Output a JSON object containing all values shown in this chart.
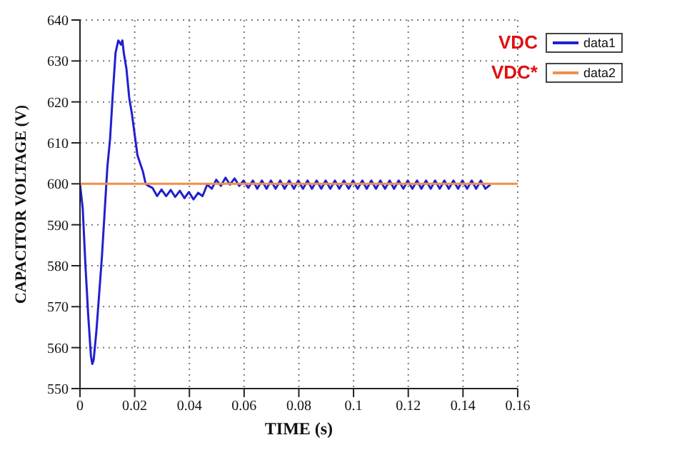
{
  "chart_data": {
    "type": "line",
    "xlabel": "TIME (s)",
    "ylabel": "CAPACITOR VOLTAGE (V)",
    "xlim": [
      0,
      0.16
    ],
    "xticks": [
      0,
      0.02,
      0.04,
      0.06,
      0.08,
      0.1,
      0.12,
      0.14,
      0.16
    ],
    "ylim": [
      550,
      640
    ],
    "yticks": [
      550,
      560,
      570,
      580,
      590,
      600,
      610,
      620,
      630,
      640
    ],
    "grid": true,
    "legend": "top right",
    "annotations": [
      "VDC",
      "VDC*"
    ],
    "series": [
      {
        "name": "data1",
        "color": "#2020d0",
        "x": [
          0,
          0.001,
          0.002,
          0.003,
          0.004,
          0.0045,
          0.005,
          0.006,
          0.007,
          0.008,
          0.009,
          0.01,
          0.011,
          0.012,
          0.013,
          0.014,
          0.015,
          0.0155,
          0.016,
          0.017,
          0.018,
          0.019,
          0.02,
          0.021,
          0.022,
          0.023,
          0.024,
          0.025,
          0.0265,
          0.0282,
          0.0298,
          0.0315,
          0.0332,
          0.0348,
          0.0365,
          0.0382,
          0.0398,
          0.0415,
          0.0432,
          0.0448,
          0.0465,
          0.0482,
          0.0498,
          0.0515,
          0.0532,
          0.0548,
          0.0565,
          0.0582,
          0.0598,
          0.0615,
          0.0632,
          0.0648,
          0.0665,
          0.0682,
          0.0698,
          0.0715,
          0.0732,
          0.0748,
          0.0765,
          0.0782,
          0.0798,
          0.0815,
          0.0832,
          0.0848,
          0.0865,
          0.0882,
          0.0898,
          0.0915,
          0.0932,
          0.0948,
          0.0965,
          0.0982,
          0.0998,
          0.1015,
          0.1032,
          0.1048,
          0.1065,
          0.1082,
          0.1098,
          0.1115,
          0.1132,
          0.1148,
          0.1165,
          0.1182,
          0.1198,
          0.1215,
          0.1232,
          0.1248,
          0.1265,
          0.1282,
          0.1298,
          0.1315,
          0.1332,
          0.1348,
          0.1365,
          0.1382,
          0.1398,
          0.1415,
          0.1432,
          0.1448,
          0.1465,
          0.1482,
          0.15
        ],
        "values": [
          600,
          594,
          580,
          568,
          558,
          556,
          557,
          564,
          573,
          582,
          593,
          604,
          611,
          622,
          632,
          635,
          634,
          635,
          632,
          628,
          621,
          617,
          612,
          607,
          605,
          603,
          600,
          599.5,
          599,
          597,
          598.6,
          597,
          598.5,
          596.8,
          598.3,
          596.5,
          598,
          596.2,
          597.8,
          597,
          599.8,
          598.8,
          601,
          599.5,
          601.5,
          599.8,
          601.3,
          599.5,
          600.8,
          599,
          600.8,
          598.8,
          600.8,
          598.8,
          600.8,
          598.8,
          600.8,
          598.8,
          600.8,
          598.8,
          600.8,
          598.8,
          600.8,
          598.8,
          600.8,
          598.8,
          600.8,
          598.8,
          600.8,
          598.8,
          600.8,
          598.8,
          600.8,
          598.8,
          600.8,
          598.8,
          600.8,
          598.8,
          600.8,
          598.8,
          600.8,
          598.8,
          600.8,
          598.8,
          600.8,
          598.8,
          600.8,
          598.8,
          600.8,
          598.8,
          600.8,
          598.8,
          600.8,
          598.8,
          600.8,
          598.8,
          600.8,
          598.8,
          600.8,
          598.8,
          600.8,
          598.8,
          599.8
        ]
      },
      {
        "name": "data2",
        "color": "#f0904a",
        "x": [
          0,
          0.16
        ],
        "values": [
          600,
          600
        ]
      }
    ]
  }
}
